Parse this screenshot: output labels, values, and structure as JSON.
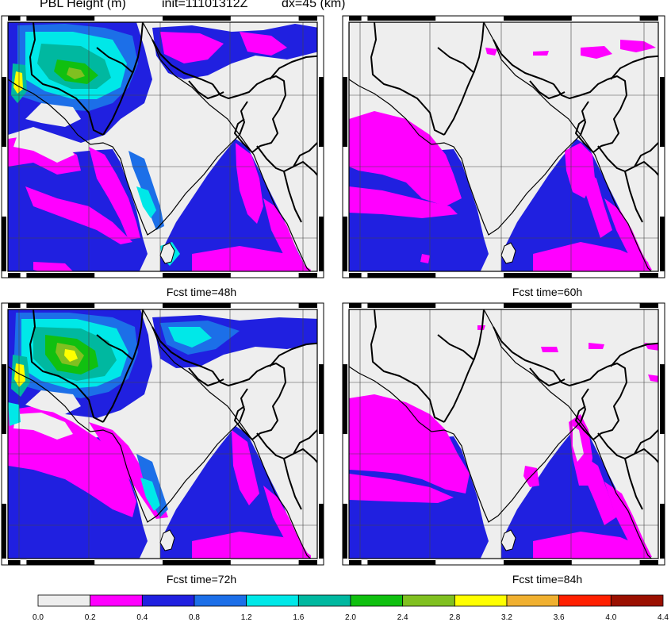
{
  "header": {
    "variable": "PBL Height (m)",
    "init": "init=11101312Z",
    "resolution": "dx=45 (km)"
  },
  "panels": [
    {
      "id": "p48",
      "title": "Fcst time=48h"
    },
    {
      "id": "p60",
      "title": "Fcst time=60h"
    },
    {
      "id": "p72",
      "title": "Fcst time=72h"
    },
    {
      "id": "p84",
      "title": "Fcst time=84h"
    }
  ],
  "colorbar": {
    "ticks": [
      "0.0",
      "0.2",
      "0.4",
      "0.8",
      "1.2",
      "1.6",
      "2.0",
      "2.4",
      "2.8",
      "3.2",
      "3.6",
      "4.0",
      "4.4"
    ],
    "colors": [
      "#eeeeee",
      "#ff00ff",
      "#2020e0",
      "#1c6fe8",
      "#00e8e8",
      "#00b8a0",
      "#10c010",
      "#80c020",
      "#ffff00",
      "#f0b030",
      "#ff2000",
      "#9a1000"
    ]
  }
}
